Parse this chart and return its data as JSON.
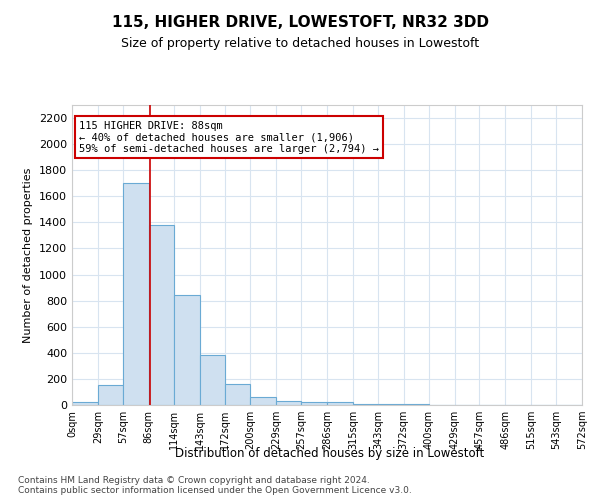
{
  "title": "115, HIGHER DRIVE, LOWESTOFT, NR32 3DD",
  "subtitle": "Size of property relative to detached houses in Lowestoft",
  "xlabel": "Distribution of detached houses by size in Lowestoft",
  "ylabel": "Number of detached properties",
  "annotation_line1": "115 HIGHER DRIVE: 88sqm",
  "annotation_line2": "← 40% of detached houses are smaller (1,906)",
  "annotation_line3": "59% of semi-detached houses are larger (2,794) →",
  "property_size": 88,
  "bin_edges": [
    0,
    29,
    57,
    86,
    114,
    143,
    172,
    200,
    229,
    257,
    286,
    315,
    343,
    372,
    400,
    429,
    457,
    486,
    515,
    543,
    572
  ],
  "bar_heights": [
    20,
    150,
    1700,
    1380,
    840,
    380,
    160,
    60,
    30,
    20,
    20,
    10,
    5,
    5,
    3,
    2,
    1,
    1,
    1,
    0
  ],
  "bar_color": "#cfe0f0",
  "bar_edge_color": "#6aaad4",
  "line_color": "#cc0000",
  "annotation_box_color": "#cc0000",
  "ylim": [
    0,
    2300
  ],
  "yticks": [
    0,
    200,
    400,
    600,
    800,
    1000,
    1200,
    1400,
    1600,
    1800,
    2000,
    2200
  ],
  "grid_color": "#d8e4f0",
  "background_color": "#ffffff",
  "footer_line1": "Contains HM Land Registry data © Crown copyright and database right 2024.",
  "footer_line2": "Contains public sector information licensed under the Open Government Licence v3.0."
}
